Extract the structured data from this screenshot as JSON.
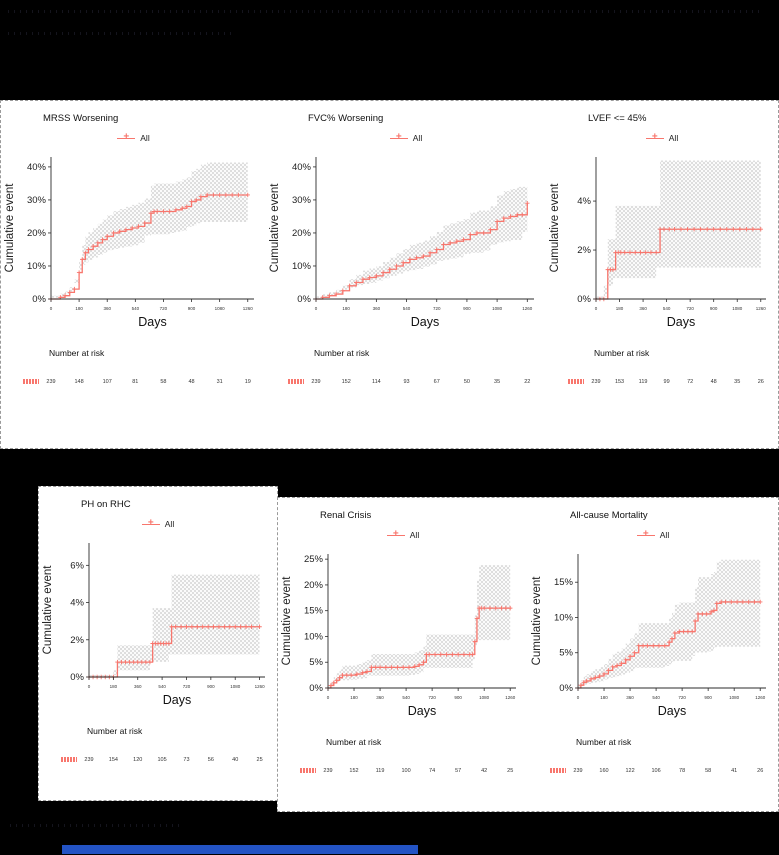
{
  "window": {
    "background": "#000000"
  },
  "colors": {
    "panel_bg": "#ffffff",
    "line": "#f8766d",
    "band_hatch": "#c9c9c9",
    "axis": "#2b2b2b",
    "text": "#1a1a1a",
    "selection_bar": "#2353c4",
    "marquee": "#9a9a9a"
  },
  "chart_data": [
    {
      "type": "line",
      "title": "MRSS Worsening",
      "legend_label": "All",
      "xlabel": "Days",
      "ylabel": "Cumulative event",
      "xlim": [
        0,
        1300
      ],
      "ylim": [
        0,
        43
      ],
      "x_ticks": [
        0,
        180,
        360,
        540,
        720,
        900,
        1080,
        1260
      ],
      "y_ticks": [
        0,
        10,
        20,
        30,
        40
      ],
      "y_tick_suffix": "%",
      "grid": false,
      "legend_position": "top",
      "number_at_risk_label": "Number at risk",
      "risk_counts": [
        239,
        148,
        107,
        81,
        58,
        48,
        31,
        19
      ],
      "band": {
        "upper_factor": 1.28,
        "upper_offset": 1.0,
        "lower_factor": 0.74
      },
      "series": [
        {
          "name": "All",
          "x": [
            0,
            60,
            90,
            120,
            150,
            180,
            200,
            220,
            240,
            270,
            300,
            330,
            360,
            400,
            440,
            480,
            520,
            560,
            600,
            640,
            660,
            680,
            720,
            760,
            800,
            840,
            870,
            900,
            930,
            960,
            1000,
            1040,
            1080,
            1120,
            1160,
            1200,
            1260
          ],
          "y": [
            0,
            0.5,
            1,
            2,
            3,
            8,
            12,
            14,
            15,
            16,
            17,
            18,
            19,
            20,
            20.5,
            21,
            21.5,
            22,
            23,
            26,
            26.5,
            26.5,
            26.5,
            26.5,
            27,
            27.5,
            28,
            29.5,
            30,
            31,
            31.5,
            31.5,
            31.5,
            31.5,
            31.5,
            31.5,
            31.5
          ]
        }
      ]
    },
    {
      "type": "line",
      "title": "FVC% Worsening",
      "legend_label": "All",
      "xlabel": "Days",
      "ylabel": "Cumulative event",
      "xlim": [
        0,
        1300
      ],
      "ylim": [
        0,
        43
      ],
      "x_ticks": [
        0,
        180,
        360,
        540,
        720,
        900,
        1080,
        1260
      ],
      "y_ticks": [
        0,
        10,
        20,
        30,
        40
      ],
      "y_tick_suffix": "%",
      "grid": false,
      "legend_position": "top",
      "number_at_risk_label": "Number at risk",
      "risk_counts": [
        239,
        152,
        114,
        93,
        67,
        50,
        35,
        22
      ],
      "band": {
        "upper_factor": 1.3,
        "upper_offset": 0.8,
        "lower_factor": 0.7
      },
      "series": [
        {
          "name": "All",
          "x": [
            0,
            40,
            80,
            120,
            160,
            200,
            240,
            280,
            320,
            360,
            400,
            440,
            480,
            520,
            560,
            600,
            640,
            680,
            720,
            760,
            800,
            840,
            880,
            920,
            960,
            1000,
            1040,
            1080,
            1120,
            1160,
            1200,
            1230,
            1260
          ],
          "y": [
            0,
            0.5,
            1,
            1.5,
            2.5,
            4,
            5,
            6,
            6.5,
            7,
            8,
            9,
            10,
            11,
            12,
            12.5,
            13,
            14,
            15,
            16.5,
            17,
            17.5,
            18,
            19.5,
            20,
            20,
            21,
            23.5,
            24.5,
            25,
            25.5,
            25.5,
            29
          ]
        }
      ]
    },
    {
      "type": "line",
      "title": "LVEF <= 45%",
      "legend_label": "All",
      "xlabel": "Days",
      "ylabel": "Cumulative event",
      "xlim": [
        0,
        1300
      ],
      "ylim": [
        0,
        5.8
      ],
      "x_ticks": [
        0,
        180,
        360,
        540,
        720,
        900,
        1080,
        1260
      ],
      "y_ticks": [
        0,
        2,
        4
      ],
      "y_tick_suffix": "%",
      "grid": false,
      "legend_position": "top",
      "number_at_risk_label": "Number at risk",
      "risk_counts": [
        239,
        153,
        119,
        99,
        72,
        48,
        35,
        26
      ],
      "band": {
        "upper_factor": 1.95,
        "upper_offset": 0.1,
        "lower_factor": 0.45
      },
      "series": [
        {
          "name": "All",
          "x": [
            0,
            30,
            60,
            90,
            110,
            130,
            150,
            170,
            190,
            220,
            260,
            300,
            340,
            380,
            420,
            460,
            490,
            520,
            560,
            600,
            650,
            700,
            750,
            800,
            850,
            900,
            950,
            1000,
            1050,
            1100,
            1150,
            1200,
            1260
          ],
          "y": [
            0,
            0,
            0,
            1.2,
            1.2,
            1.2,
            1.9,
            1.9,
            1.9,
            1.9,
            1.9,
            1.9,
            1.9,
            1.9,
            1.9,
            1.9,
            2.85,
            2.85,
            2.85,
            2.85,
            2.85,
            2.85,
            2.85,
            2.85,
            2.85,
            2.85,
            2.85,
            2.85,
            2.85,
            2.85,
            2.85,
            2.85,
            2.85
          ]
        }
      ]
    },
    {
      "type": "line",
      "title": "PH on RHC",
      "legend_label": "All",
      "xlabel": "Days",
      "ylabel": "Cumulative event",
      "xlim": [
        0,
        1300
      ],
      "ylim": [
        0,
        7.2
      ],
      "x_ticks": [
        0,
        180,
        360,
        540,
        720,
        900,
        1080,
        1260
      ],
      "y_ticks": [
        0,
        2,
        4,
        6
      ],
      "y_tick_suffix": "%",
      "grid": false,
      "legend_position": "top",
      "number_at_risk_label": "Number at risk",
      "risk_counts": [
        239,
        154,
        120,
        105,
        73,
        56,
        40,
        25
      ],
      "band": {
        "upper_factor": 2.0,
        "upper_offset": 0.1,
        "lower_factor": 0.45
      },
      "series": [
        {
          "name": "All",
          "x": [
            0,
            30,
            60,
            90,
            120,
            150,
            180,
            210,
            240,
            270,
            300,
            330,
            360,
            390,
            420,
            450,
            470,
            490,
            510,
            530,
            550,
            570,
            590,
            610,
            640,
            680,
            720,
            760,
            800,
            840,
            880,
            920,
            960,
            1000,
            1040,
            1080,
            1120,
            1160,
            1200,
            1260
          ],
          "y": [
            0,
            0,
            0,
            0,
            0,
            0,
            0,
            0.8,
            0.8,
            0.8,
            0.8,
            0.8,
            0.8,
            0.8,
            0.8,
            0.8,
            1.8,
            1.8,
            1.8,
            1.8,
            1.8,
            1.8,
            1.8,
            2.7,
            2.7,
            2.7,
            2.7,
            2.7,
            2.7,
            2.7,
            2.7,
            2.7,
            2.7,
            2.7,
            2.7,
            2.7,
            2.7,
            2.7,
            2.7,
            2.7
          ]
        }
      ]
    },
    {
      "type": "line",
      "title": "Renal Crisis",
      "legend_label": "All",
      "xlabel": "Days",
      "ylabel": "Cumulative event",
      "xlim": [
        0,
        1300
      ],
      "ylim": [
        0,
        26
      ],
      "x_ticks": [
        0,
        180,
        360,
        540,
        720,
        900,
        1080,
        1260
      ],
      "y_ticks": [
        0,
        5,
        10,
        15,
        20,
        25
      ],
      "y_tick_suffix": "%",
      "grid": false,
      "legend_position": "top",
      "number_at_risk_label": "Number at risk",
      "risk_counts": [
        239,
        152,
        119,
        100,
        74,
        57,
        42,
        25
      ],
      "band": {
        "upper_factor": 1.5,
        "upper_offset": 0.6,
        "lower_factor": 0.6
      },
      "series": [
        {
          "name": "All",
          "x": [
            0,
            20,
            40,
            60,
            80,
            100,
            130,
            160,
            200,
            240,
            270,
            300,
            330,
            360,
            400,
            440,
            480,
            520,
            560,
            600,
            630,
            660,
            680,
            700,
            740,
            780,
            820,
            860,
            900,
            940,
            980,
            1000,
            1015,
            1030,
            1045,
            1060,
            1080,
            1120,
            1160,
            1200,
            1230,
            1260
          ],
          "y": [
            0,
            0.5,
            1,
            1.5,
            2,
            2.5,
            2.5,
            2.5,
            2.7,
            3,
            3.2,
            4,
            4,
            4,
            4,
            4,
            4,
            4,
            4,
            4.2,
            4.5,
            5,
            6.5,
            6.5,
            6.5,
            6.5,
            6.5,
            6.5,
            6.5,
            6.5,
            6.5,
            6.5,
            9,
            13.5,
            15.5,
            15.5,
            15.5,
            15.5,
            15.5,
            15.5,
            15.5,
            15.5
          ]
        }
      ]
    },
    {
      "type": "line",
      "title": "All-cause Mortality",
      "legend_label": "All",
      "xlabel": "Days",
      "ylabel": "Cumulative event",
      "xlim": [
        0,
        1300
      ],
      "ylim": [
        0,
        19
      ],
      "x_ticks": [
        0,
        180,
        360,
        540,
        720,
        900,
        1080,
        1260
      ],
      "y_ticks": [
        0,
        5,
        10,
        15
      ],
      "y_tick_suffix": "%",
      "grid": false,
      "legend_position": "top",
      "number_at_risk_label": "Number at risk",
      "risk_counts": [
        239,
        160,
        122,
        106,
        78,
        58,
        41,
        26
      ],
      "band": {
        "upper_factor": 1.45,
        "upper_offset": 0.5,
        "lower_factor": 0.48
      },
      "series": [
        {
          "name": "All",
          "x": [
            0,
            20,
            40,
            60,
            90,
            120,
            150,
            180,
            210,
            240,
            270,
            300,
            330,
            360,
            390,
            420,
            450,
            480,
            520,
            560,
            600,
            630,
            650,
            670,
            700,
            730,
            760,
            790,
            810,
            830,
            860,
            890,
            920,
            940,
            960,
            990,
            1020,
            1060,
            1100,
            1140,
            1180,
            1220,
            1260
          ],
          "y": [
            0,
            0.4,
            0.8,
            1,
            1.3,
            1.5,
            1.7,
            2,
            2.5,
            3,
            3.2,
            3.5,
            4,
            4.5,
            5,
            6,
            6,
            6,
            6,
            6,
            6,
            6.5,
            7,
            7.8,
            8,
            8,
            8,
            8,
            9.5,
            10.5,
            10.5,
            10.5,
            10.8,
            11,
            12,
            12.2,
            12.2,
            12.2,
            12.2,
            12.2,
            12.2,
            12.2,
            12.2
          ]
        }
      ]
    }
  ]
}
